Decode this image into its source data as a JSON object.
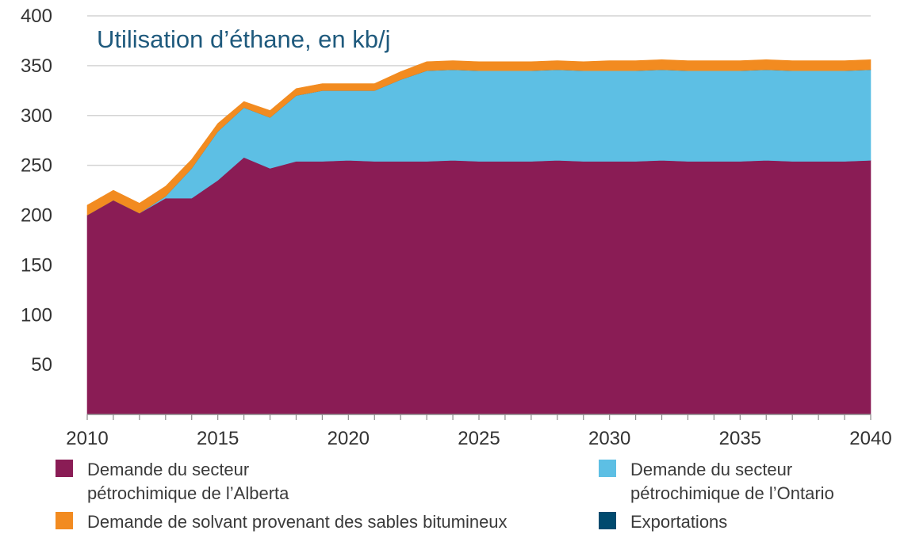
{
  "chart_data": {
    "type": "area",
    "title": "Utilisation d’éthane, en kb/j",
    "xlabel": "",
    "ylabel": "",
    "xlim": [
      2010,
      2040
    ],
    "ylim": [
      0,
      400
    ],
    "yticks": [
      50,
      100,
      150,
      200,
      250,
      300,
      350,
      400
    ],
    "xticks": [
      2010,
      2015,
      2020,
      2025,
      2030,
      2035,
      2040
    ],
    "stacked": true,
    "grid": "horizontal",
    "legend_position": "bottom",
    "x": [
      2010,
      2011,
      2012,
      2013,
      2014,
      2015,
      2016,
      2017,
      2018,
      2019,
      2020,
      2021,
      2022,
      2023,
      2024,
      2025,
      2026,
      2027,
      2028,
      2029,
      2030,
      2031,
      2032,
      2033,
      2034,
      2035,
      2036,
      2037,
      2038,
      2039,
      2040
    ],
    "series": [
      {
        "name": "Demande du secteur pétrochimique de l’Alberta",
        "color": "#8a1c55",
        "values": [
          200,
          215,
          202,
          217,
          217,
          235,
          258,
          247,
          254,
          254,
          255,
          254,
          254,
          254,
          255,
          254,
          254,
          254,
          255,
          254,
          254,
          254,
          255,
          254,
          254,
          254,
          255,
          254,
          254,
          254,
          255
        ]
      },
      {
        "name": "Demande du secteur pétrochimique de l’Ontario",
        "color": "#5dbfe4",
        "values": [
          0,
          0,
          0,
          2,
          30,
          49,
          50,
          51,
          66,
          71,
          70,
          71,
          82,
          91,
          91,
          91,
          91,
          91,
          91,
          91,
          91,
          91,
          91,
          91,
          91,
          91,
          91,
          91,
          91,
          91,
          91
        ]
      },
      {
        "name": "Exportations",
        "color": "#004a6e",
        "values": [
          0,
          0,
          0,
          0,
          0,
          0,
          0,
          0,
          0,
          0,
          0,
          0,
          0,
          0,
          0,
          0,
          0,
          0,
          0,
          0,
          0,
          0,
          0,
          0,
          0,
          0,
          0,
          0,
          0,
          0,
          0
        ]
      },
      {
        "name": "Demande de solvant provenant des sables bitumineux",
        "color": "#f28b20",
        "values": [
          10,
          10,
          10,
          10,
          9,
          8,
          6,
          7,
          7,
          7,
          7,
          7,
          8,
          9,
          9,
          9,
          9,
          9,
          9,
          9,
          10,
          10,
          10,
          10,
          10,
          10,
          10,
          10,
          10,
          10,
          10
        ]
      }
    ]
  },
  "legend": {
    "items": [
      {
        "label": "Demande du secteur\npétrochimique de l’Alberta",
        "color": "#8a1c55"
      },
      {
        "label": "Demande de solvant provenant des sables bitumineux",
        "color": "#f28b20"
      },
      {
        "label": "Demande du secteur\npétrochimique de l’Ontario",
        "color": "#5dbfe4"
      },
      {
        "label": "Exportations",
        "color": "#004a6e"
      }
    ]
  }
}
